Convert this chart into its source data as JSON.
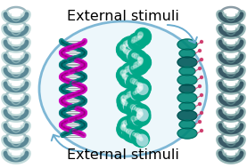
{
  "title_top": "External stimuli",
  "title_bottom": "External stimuli",
  "bg_color": "#ffffff",
  "ellipse_edge": "#6aaccf",
  "ellipse_face": "#eaf6fb",
  "arrow_color": "#6aaccf",
  "helix_light": "#8ab8c8",
  "helix_dark": "#2a5a6a",
  "helix_mid": "#4a8a9a",
  "magenta_color": "#cc00bb",
  "teal_ribbon": "#007a7a",
  "spacefill_light": "#9dd8d8",
  "spacefill_mid": "#4ab8aa",
  "spacefill_dark": "#00a888",
  "chain_color": "#666666",
  "compact_teal": "#008878",
  "compact_dark": "#005a5a",
  "text_fontsize": 11.5,
  "fig_width": 2.77,
  "fig_height": 1.89
}
